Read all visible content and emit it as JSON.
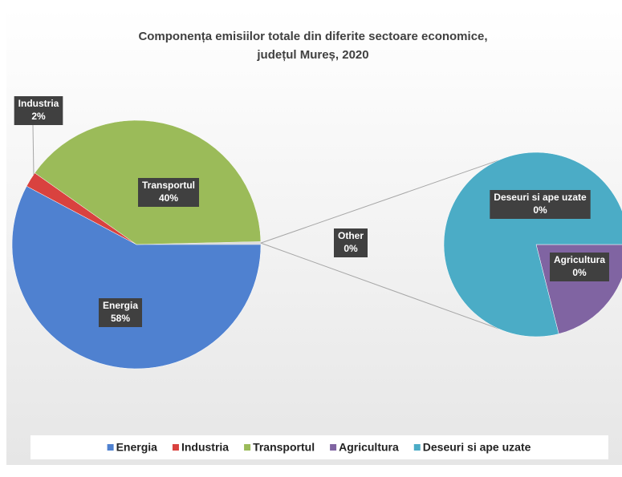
{
  "chart_data": {
    "type": "pie-of-pie",
    "title": [
      "Componența emisiilor totale din diferite sectoare economice,",
      "județul Mureș, 2020"
    ],
    "categories": [
      "Energia",
      "Industria",
      "Transportul",
      "Agricultura",
      "Deseuri si ape uzate"
    ],
    "values": [
      58,
      2,
      40,
      0.08,
      0.3
    ],
    "value_labels": [
      "58%",
      "2%",
      "40%",
      "0%",
      "0%"
    ],
    "colors": [
      "#4f81d0",
      "#d9423f",
      "#9bbb59",
      "#8064a2",
      "#4bacc6"
    ],
    "secondary_count": 2,
    "other_label": "Other",
    "other_value_label": "0%",
    "legend": "bottom"
  }
}
